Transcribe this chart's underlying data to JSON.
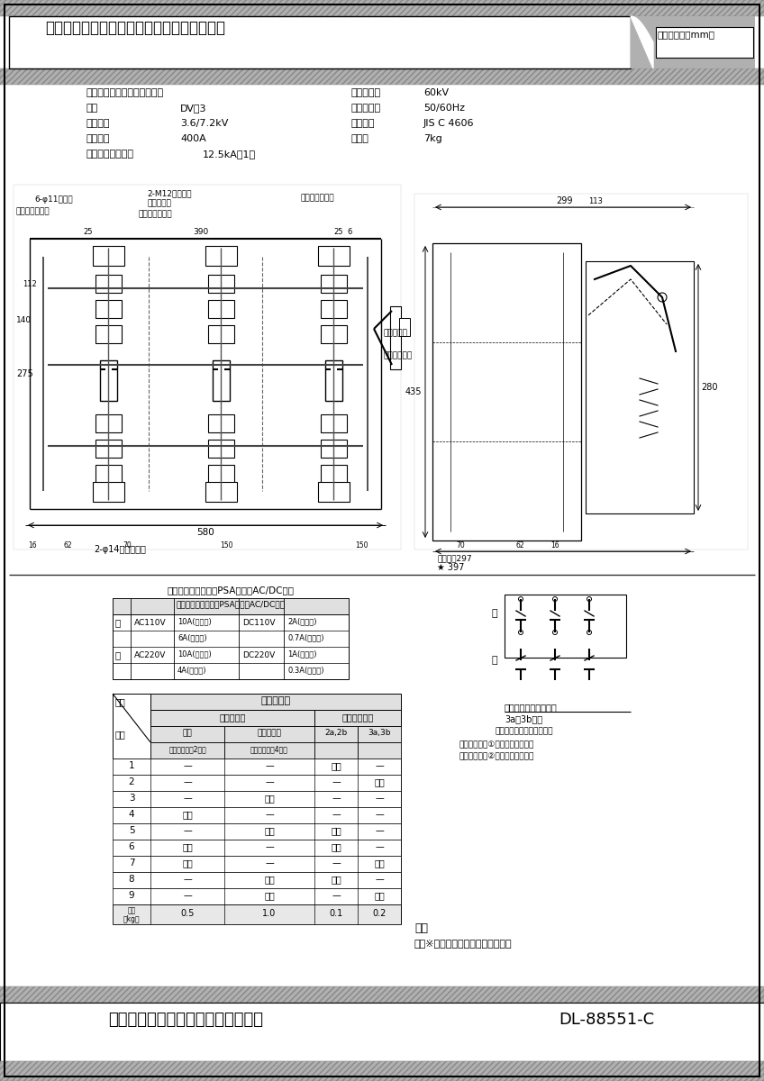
{
  "title_text": "屋内用断路器　ＤＶ－３形　フック棒操作式",
  "title_right": "外形寸法図（mm）",
  "bg_color": "#ffffff",
  "footer_left": "三菱電機社会インフラ機器株式会社",
  "footer_right": "DL-88551-C",
  "spec_l1": "屋内用、垂直・水平下向取付",
  "spec_l2_label": "形名",
  "spec_l2_val": "DV－3",
  "spec_l3_label": "定格電圧",
  "spec_l3_val": "3.6/7.2kV",
  "spec_l4_label": "定格電流",
  "spec_l4_val": "400A",
  "spec_l5_label": "定格短時間耓電流",
  "spec_l5_val": "12.5kA、1秒",
  "spec_r1_label": "定格耓電圧",
  "spec_r1_val": "60kV",
  "spec_r2_label": "定格周波数",
  "spec_r2_val": "50/60Hz",
  "spec_r3_label": "適用規格",
  "spec_r3_val": "JIS C 4606",
  "spec_r4_label": "総質量",
  "spec_r4_val": "7kg",
  "note1": "6-φ11端子穴",
  "note2": "2-M12ダルマ穴",
  "note2b": "（取付穴）",
  "note3": "右側絶縁バリヤ",
  "note4": "左側絶縁バリヤ",
  "note5": "相間絶縁バリヤ",
  "note6": "操作レバー",
  "note7": "補助スイッチ",
  "dim_580": "580",
  "dim_299": "299",
  "dim_435": "435",
  "dim_280": "280",
  "dim_397": "★ 397",
  "dim_open": "開閉寸法297",
  "dim_275": "275",
  "dim_140": "140",
  "dim_112": "112",
  "note_phi14": "2-φ14（取付穴）",
  "table1_title": "補助スイッチ仕様（PSA形）　AC/DC共用",
  "t1_def": "定",
  "t1_kaku": "格",
  "t1_ac110": "AC110V",
  "t1_ac220": "AC220V",
  "t1_dc110": "DC110V",
  "t1_dc220": "DC220V",
  "t1_r1a": "10A(瞬断器)",
  "t1_r1b": "6A(連続器)",
  "t1_r2a": "10A(瞬断器)",
  "t1_r2b": "4A(連続器)",
  "t1_dc1a": "2A(瞬断器)",
  "t1_dc1b": "0.7A(連続器)",
  "t1_dc2a": "1A(瞬断器)",
  "t1_dc2b": "0.3A(連続器)",
  "table2_title": "付　属　品",
  "t2_shiyou": "仕様",
  "t2_gyoban": "行番",
  "t2_zetsuen": "絶縁バリヤ",
  "t2_hojo": "補助スイッチ",
  "t2_soukan": "相間",
  "t2_sayu": "左右、相間",
  "t2_zetsuen2": "絶縁バリヤ（2枚）",
  "t2_zetsuen4": "絶縁バリヤ（4枚）",
  "t2_2a2b": "2a,2b",
  "t2_3a3b": "3a,3b",
  "t2_fuzoku": "付属",
  "t2_dash": "—",
  "t2_rows": [
    [
      "1",
      "—",
      "—",
      "付属",
      "—"
    ],
    [
      "2",
      "—",
      "—",
      "—",
      "付属"
    ],
    [
      "3",
      "—",
      "付属",
      "—",
      "—"
    ],
    [
      "4",
      "付属",
      "—",
      "—",
      "—"
    ],
    [
      "5",
      "—",
      "付属",
      "付属",
      "—"
    ],
    [
      "6",
      "付属",
      "—",
      "付属",
      "—"
    ],
    [
      "7",
      "付属",
      "—",
      "—",
      "付属"
    ],
    [
      "8",
      "—",
      "付属",
      "付属",
      "—"
    ],
    [
      "9",
      "—",
      "付属",
      "—",
      "付属"
    ]
  ],
  "t2_mass_label": "質量\n（kg）",
  "t2_mass_vals": [
    "0.5",
    "1.0",
    "0.1",
    "0.2"
  ],
  "aux_title": "補助スイッチ接点構成",
  "aux_sub1": "3a，3bの時",
  "aux_sub2": "（断路器投入状態を示す）",
  "aux_label1": "補助スイッチ①：本体樹脂部が黒",
  "aux_label2": "補助スイッチ②：本体樹脂部が赤",
  "note_title": "注意",
  "note_text": "１．※印寸法は最小据付寸法です。"
}
